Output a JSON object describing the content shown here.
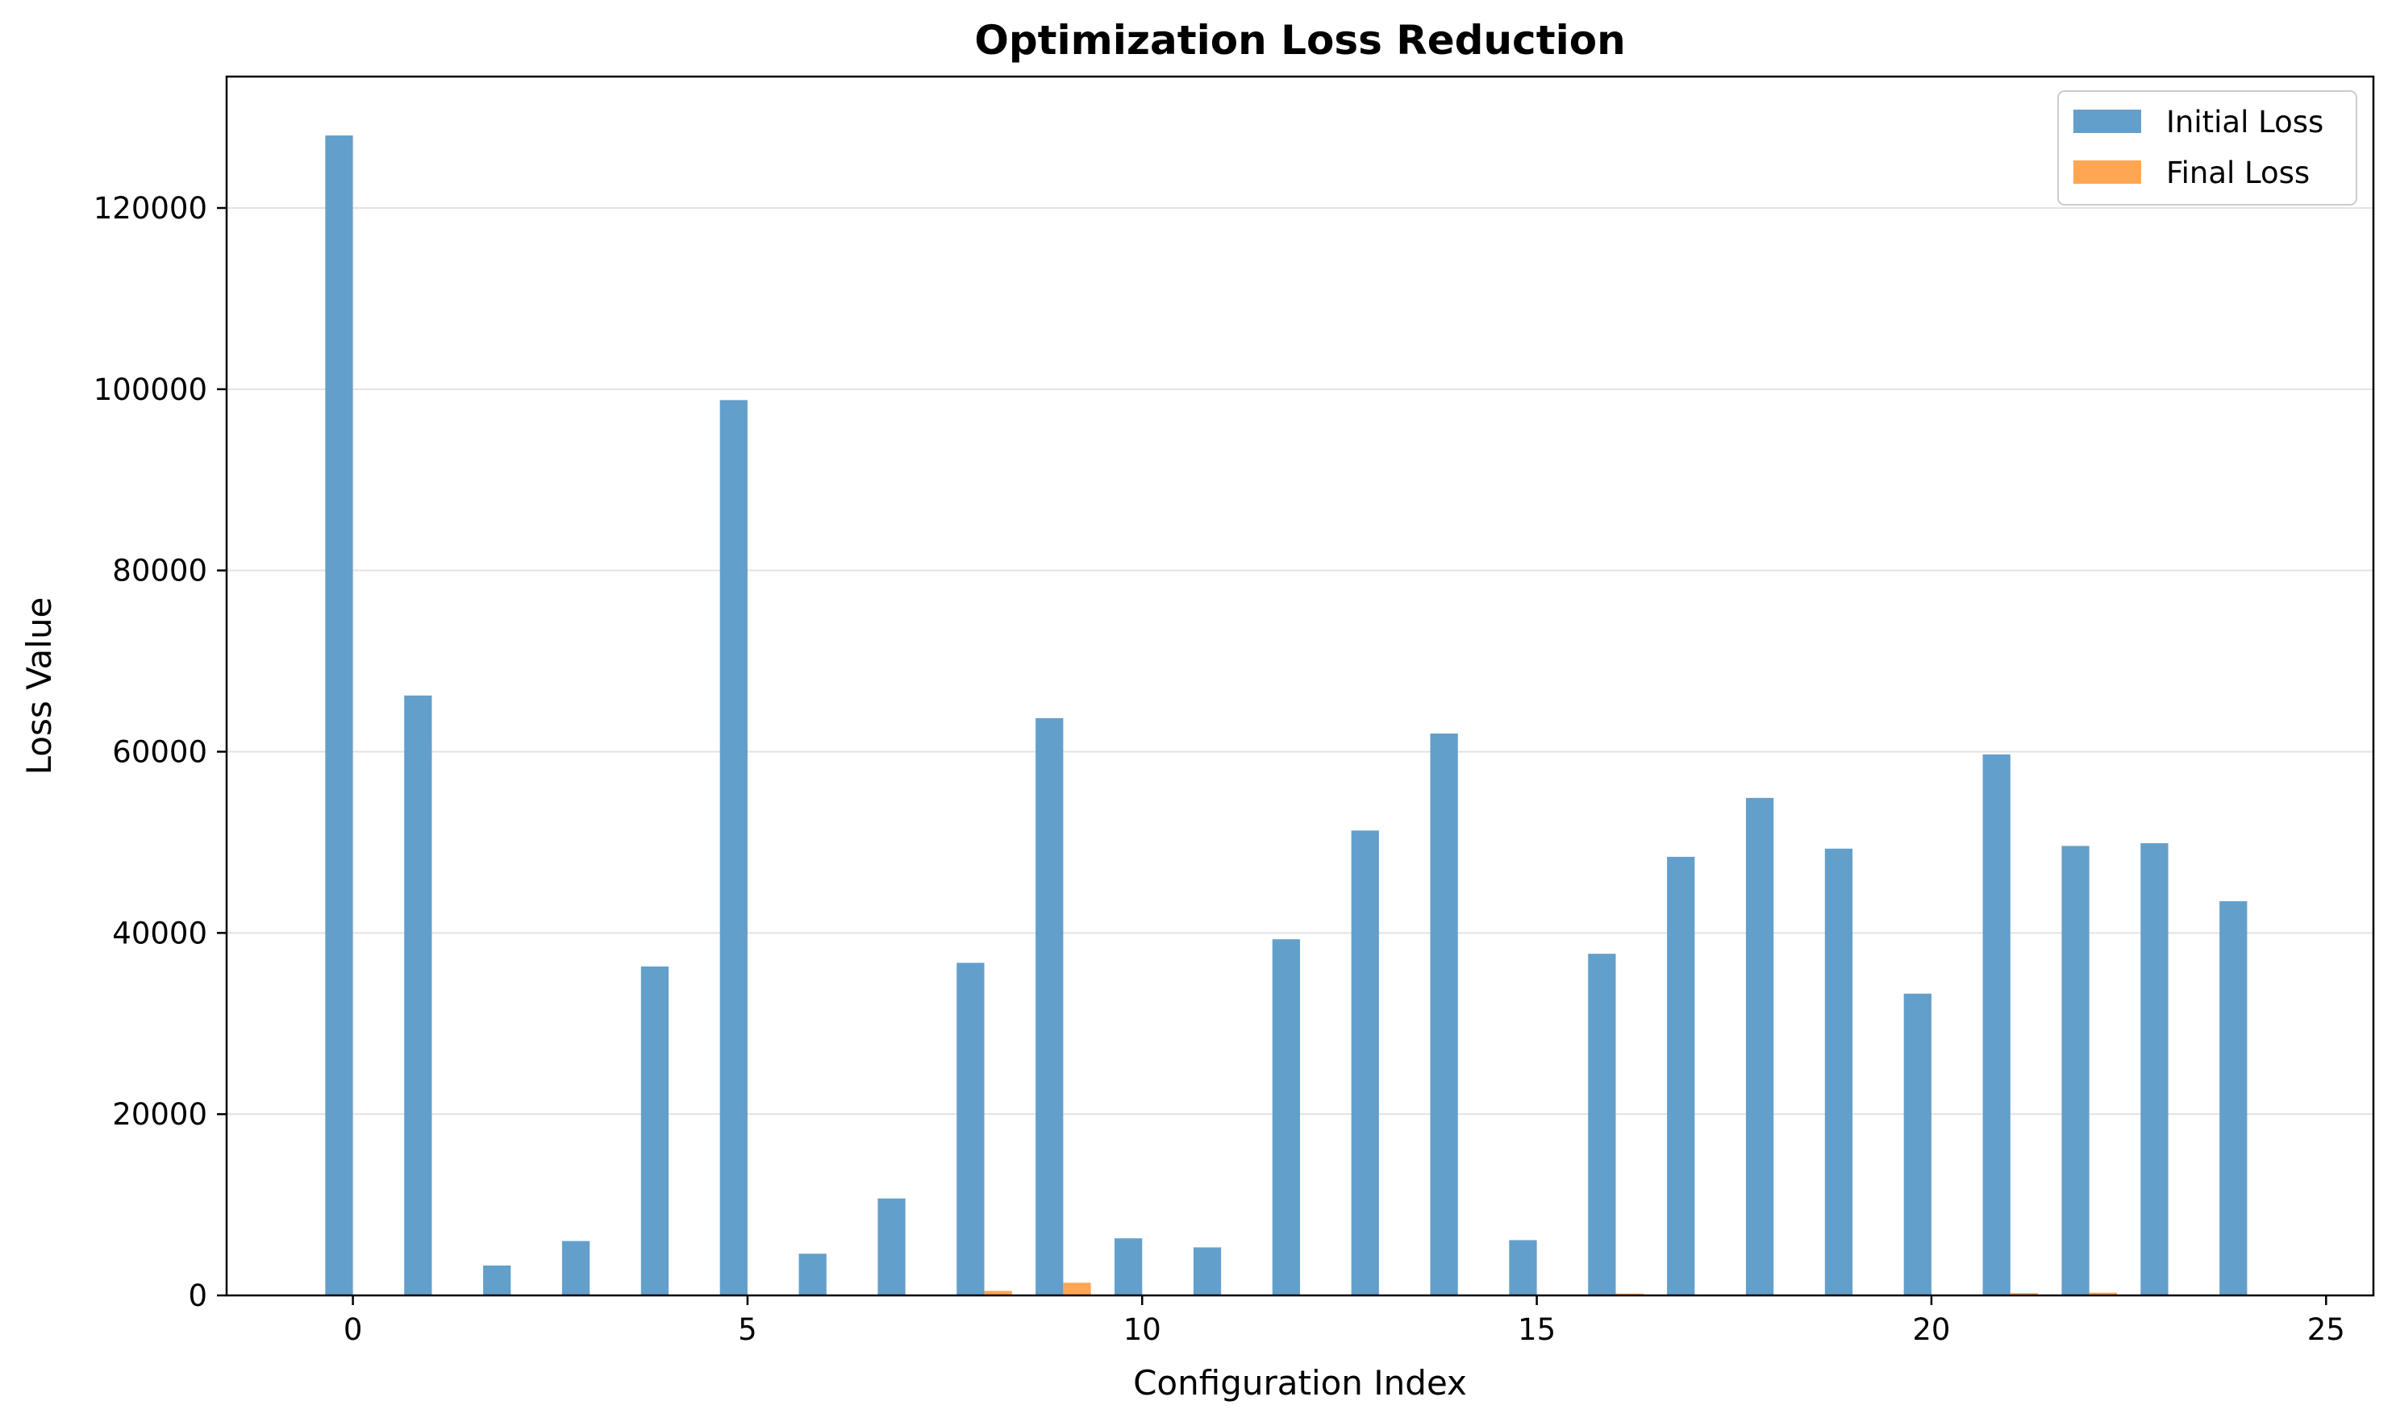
{
  "chart_data": {
    "type": "bar",
    "title": "Optimization Loss Reduction",
    "xlabel": "Configuration Index",
    "ylabel": "Loss Value",
    "x": [
      0,
      1,
      2,
      3,
      4,
      5,
      6,
      7,
      8,
      9,
      10,
      11,
      12,
      13,
      14,
      15,
      16,
      17,
      18,
      19,
      20,
      21,
      22,
      23,
      24
    ],
    "xlim": [
      -1.6,
      25.6
    ],
    "ylim": [
      0,
      134500
    ],
    "xticks": [
      0,
      5,
      10,
      15,
      20,
      25
    ],
    "yticks": [
      0,
      20000,
      40000,
      60000,
      80000,
      100000,
      120000
    ],
    "grid": "y",
    "legend": "top-right",
    "series": [
      {
        "name": "Initial Loss",
        "color": "#639fcb",
        "values": [
          128000,
          66200,
          3300,
          6000,
          36300,
          98800,
          4600,
          10700,
          36700,
          63700,
          6300,
          5300,
          39300,
          51300,
          62000,
          6100,
          37700,
          48400,
          54900,
          49300,
          33300,
          59700,
          49600,
          49900,
          43500
        ]
      },
      {
        "name": "Final Loss",
        "color": "#ffa654",
        "values": [
          30,
          20,
          10,
          20,
          30,
          40,
          20,
          40,
          500,
          1400,
          40,
          30,
          60,
          70,
          80,
          30,
          200,
          90,
          80,
          70,
          60,
          250,
          300,
          90,
          80
        ]
      }
    ]
  }
}
